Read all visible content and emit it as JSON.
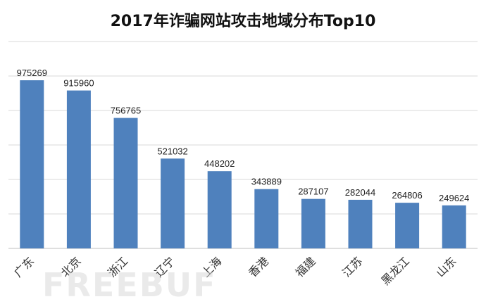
{
  "chart_data": {
    "type": "bar",
    "title": "2017年诈骗网站攻击地域分布Top10",
    "xlabel": "",
    "ylabel": "",
    "categories": [
      "广东",
      "北京",
      "浙江",
      "辽宁",
      "上海",
      "香港",
      "福建",
      "江苏",
      "黑龙江",
      "山东"
    ],
    "values": [
      975269,
      915960,
      756765,
      521032,
      448202,
      343889,
      287107,
      282044,
      264806,
      249624
    ],
    "ylim": [
      0,
      1200000
    ],
    "grid": true,
    "legend": "none",
    "bar_color": "#4f81bd",
    "grid_color": "#d9d9d9"
  },
  "watermark": "FREEBUF"
}
